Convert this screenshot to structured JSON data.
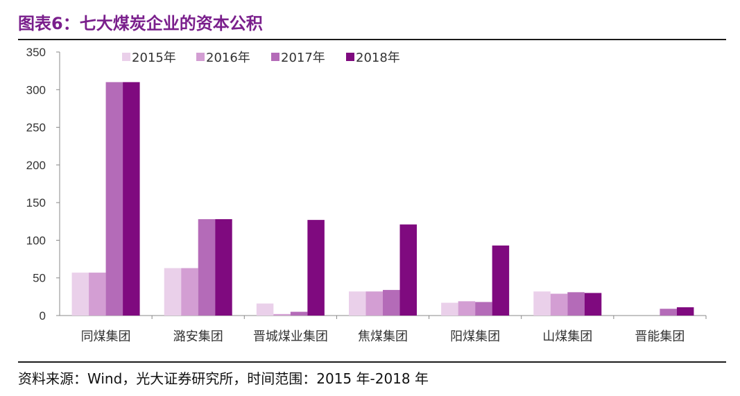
{
  "title": "图表6：七大煤炭企业的资本公积",
  "source": "资料来源：Wind，光大证券研究所，时间范围：2015 年-2018 年",
  "colors": {
    "title": "#7a1f8c",
    "series": [
      "#ead0ea",
      "#d39ed3",
      "#b46bb8",
      "#7f0a7f"
    ]
  },
  "chart_data": {
    "type": "bar",
    "categories": [
      "同煤集团",
      "潞安集团",
      "晋城煤业集团",
      "焦煤集团",
      "阳煤集团",
      "山煤集团",
      "晋能集团"
    ],
    "series": [
      {
        "name": "2015年",
        "values": [
          57,
          63,
          16,
          32,
          17,
          32,
          0
        ]
      },
      {
        "name": "2016年",
        "values": [
          57,
          63,
          2,
          32,
          19,
          29,
          0
        ]
      },
      {
        "name": "2017年",
        "values": [
          310,
          128,
          5,
          34,
          18,
          31,
          9
        ]
      },
      {
        "name": "2018年",
        "values": [
          310,
          128,
          127,
          121,
          93,
          30,
          11
        ]
      }
    ],
    "ylim": [
      0,
      350
    ],
    "yticks": [
      0,
      50,
      100,
      150,
      200,
      250,
      300,
      350
    ],
    "legend_position": "top",
    "grid": false
  }
}
